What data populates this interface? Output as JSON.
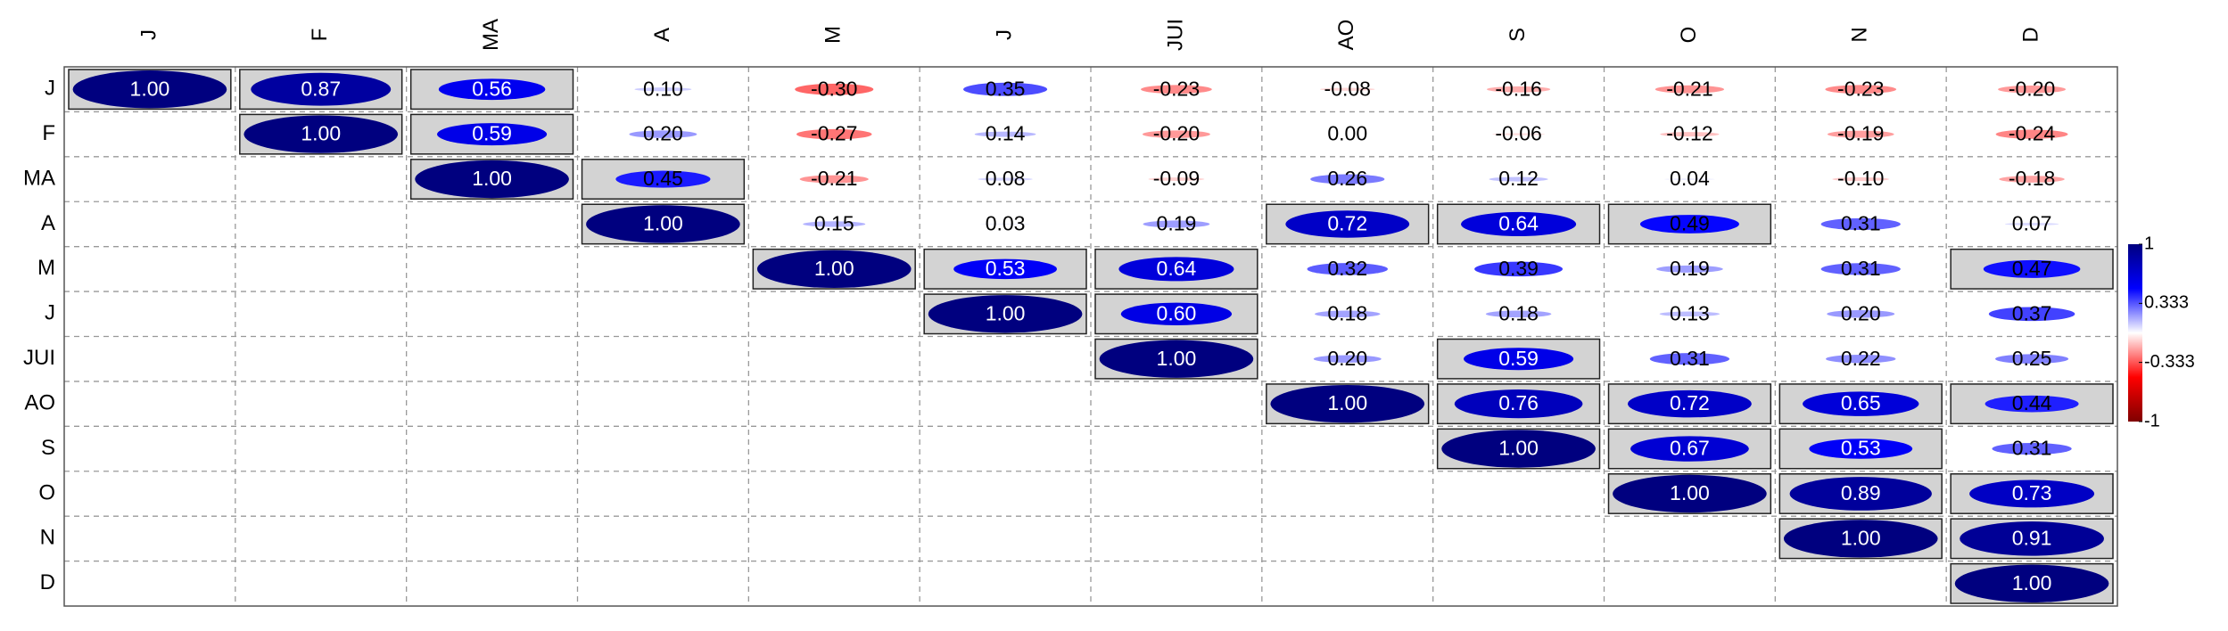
{
  "chart_data": {
    "type": "correlation",
    "categories": [
      "J",
      "F",
      "MA",
      "A",
      "M",
      "J",
      "JUI",
      "AO",
      "S",
      "O",
      "N",
      "D"
    ],
    "values": [
      [
        1.0,
        0.87,
        0.56,
        0.1,
        -0.3,
        0.35,
        -0.23,
        -0.08,
        -0.16,
        -0.21,
        -0.23,
        -0.2
      ],
      [
        null,
        1.0,
        0.59,
        0.2,
        -0.27,
        0.14,
        -0.2,
        0.0,
        -0.06,
        -0.12,
        -0.19,
        -0.24
      ],
      [
        null,
        null,
        1.0,
        0.45,
        -0.21,
        0.08,
        -0.09,
        0.26,
        0.12,
        0.04,
        -0.1,
        -0.18
      ],
      [
        null,
        null,
        null,
        1.0,
        0.15,
        0.03,
        0.19,
        0.72,
        0.64,
        0.49,
        0.31,
        0.07
      ],
      [
        null,
        null,
        null,
        null,
        1.0,
        0.53,
        0.64,
        0.32,
        0.39,
        0.19,
        0.31,
        0.47
      ],
      [
        null,
        null,
        null,
        null,
        null,
        1.0,
        0.6,
        0.18,
        0.18,
        0.13,
        0.2,
        0.37
      ],
      [
        null,
        null,
        null,
        null,
        null,
        null,
        1.0,
        0.2,
        0.59,
        0.31,
        0.22,
        0.25
      ],
      [
        null,
        null,
        null,
        null,
        null,
        null,
        null,
        1.0,
        0.76,
        0.72,
        0.65,
        0.44
      ],
      [
        null,
        null,
        null,
        null,
        null,
        null,
        null,
        null,
        1.0,
        0.67,
        0.53,
        0.31
      ],
      [
        null,
        null,
        null,
        null,
        null,
        null,
        null,
        null,
        null,
        1.0,
        0.89,
        0.73
      ],
      [
        null,
        null,
        null,
        null,
        null,
        null,
        null,
        null,
        null,
        null,
        1.0,
        0.91
      ],
      [
        null,
        null,
        null,
        null,
        null,
        null,
        null,
        null,
        null,
        null,
        null,
        1.0
      ]
    ],
    "value_labels": [
      [
        "1.00",
        "0.87",
        "0.56",
        "0.10",
        "-0.30",
        "0.35",
        "-0.23",
        "-0.08",
        "-0.16",
        "-0.21",
        "-0.23",
        "-0.20"
      ],
      [
        null,
        "1.00",
        "0.59",
        "0.20",
        "-0.27",
        "0.14",
        "-0.20",
        "0.00",
        "-0.06",
        "-0.12",
        "-0.19",
        "-0.24"
      ],
      [
        null,
        null,
        "1.00",
        "0.45",
        "-0.21",
        "0.08",
        "-0.09",
        "0.26",
        "0.12",
        "0.04",
        "-0.10",
        "-0.18"
      ],
      [
        null,
        null,
        null,
        "1.00",
        "0.15",
        "0.03",
        "0.19",
        "0.72",
        "0.64",
        "0.49",
        "0.31",
        "0.07"
      ],
      [
        null,
        null,
        null,
        null,
        "1.00",
        "0.53",
        "0.64",
        "0.32",
        "0.39",
        "0.19",
        "0.31",
        "0.47"
      ],
      [
        null,
        null,
        null,
        null,
        null,
        "1.00",
        "0.60",
        "0.18",
        "0.18",
        "0.13",
        "0.20",
        "0.37"
      ],
      [
        null,
        null,
        null,
        null,
        null,
        null,
        "1.00",
        "0.20",
        "0.59",
        "0.31",
        "0.22",
        "0.25"
      ],
      [
        null,
        null,
        null,
        null,
        null,
        null,
        null,
        "1.00",
        "0.76",
        "0.72",
        "0.65",
        "0.44"
      ],
      [
        null,
        null,
        null,
        null,
        null,
        null,
        null,
        null,
        "1.00",
        "0.67",
        "0.53",
        "0.31"
      ],
      [
        null,
        null,
        null,
        null,
        null,
        null,
        null,
        null,
        null,
        "1.00",
        "0.89",
        "0.73"
      ],
      [
        null,
        null,
        null,
        null,
        null,
        null,
        null,
        null,
        null,
        null,
        "1.00",
        "0.91"
      ],
      [
        null,
        null,
        null,
        null,
        null,
        null,
        null,
        null,
        null,
        null,
        null,
        "1.00"
      ]
    ],
    "highlighted": [
      [
        true,
        true,
        true,
        false,
        false,
        false,
        false,
        false,
        false,
        false,
        false,
        false
      ],
      [
        null,
        true,
        true,
        false,
        false,
        false,
        false,
        false,
        false,
        false,
        false,
        false
      ],
      [
        null,
        null,
        true,
        true,
        false,
        false,
        false,
        false,
        false,
        false,
        false,
        false
      ],
      [
        null,
        null,
        null,
        true,
        false,
        false,
        false,
        true,
        true,
        true,
        false,
        false
      ],
      [
        null,
        null,
        null,
        null,
        true,
        true,
        true,
        false,
        false,
        false,
        false,
        true
      ],
      [
        null,
        null,
        null,
        null,
        null,
        true,
        true,
        false,
        false,
        false,
        false,
        false
      ],
      [
        null,
        null,
        null,
        null,
        null,
        null,
        true,
        false,
        true,
        false,
        false,
        false
      ],
      [
        null,
        null,
        null,
        null,
        null,
        null,
        null,
        true,
        true,
        true,
        true,
        true
      ],
      [
        null,
        null,
        null,
        null,
        null,
        null,
        null,
        null,
        true,
        true,
        true,
        false
      ],
      [
        null,
        null,
        null,
        null,
        null,
        null,
        null,
        null,
        null,
        true,
        true,
        true
      ],
      [
        null,
        null,
        null,
        null,
        null,
        null,
        null,
        null,
        null,
        null,
        true,
        true
      ],
      [
        null,
        null,
        null,
        null,
        null,
        null,
        null,
        null,
        null,
        null,
        null,
        true
      ]
    ],
    "clim": [
      -1,
      1
    ],
    "colorbar_ticks": [
      1,
      0.333,
      -0.333,
      -1
    ],
    "colors": [
      "#7f0000",
      "#ff0000",
      "#ffffff",
      "#0000ff",
      "#00007f"
    ],
    "highlight_color": "#d3d3d3",
    "grid": true
  }
}
